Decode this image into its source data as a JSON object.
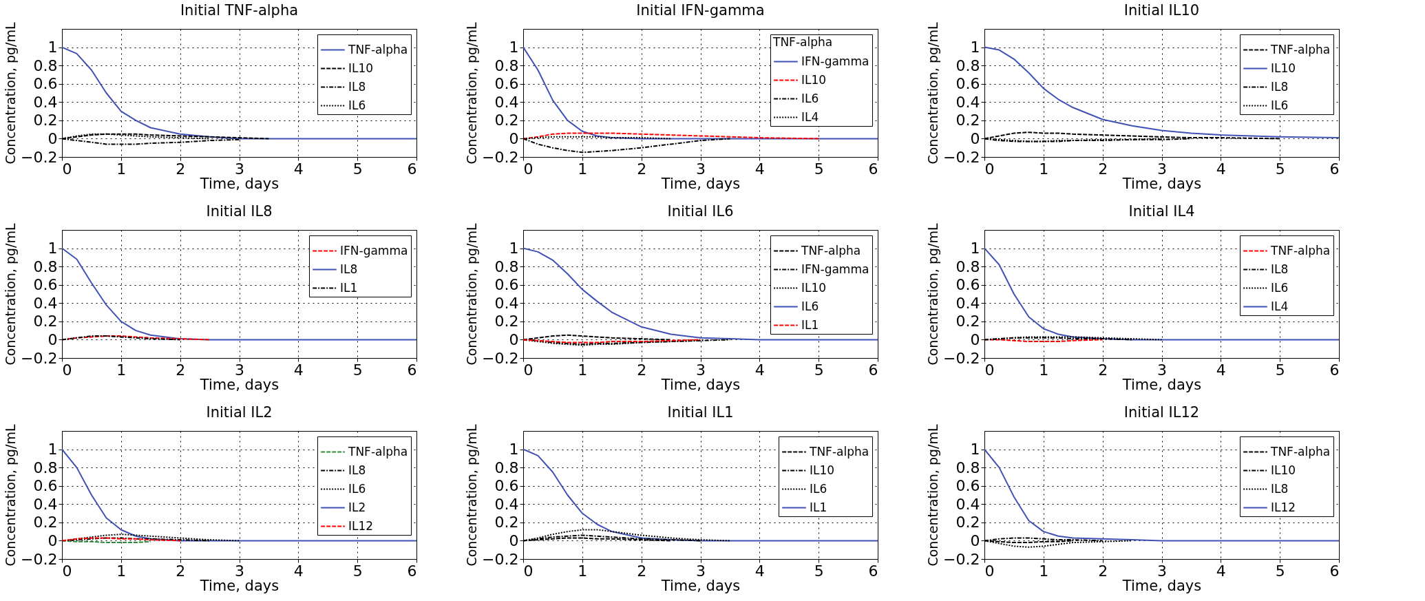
{
  "chart_data": [
    {
      "type": "line",
      "title": "Initial TNF-alpha",
      "xlabel": "Time, days",
      "ylabel": "Concentration, pg/mL",
      "x": [
        0,
        0.25,
        0.5,
        0.75,
        1,
        1.25,
        1.5,
        2,
        2.5,
        3,
        3.5,
        4,
        5,
        6
      ],
      "xlim": [
        0,
        6
      ],
      "ylim": [
        -0.2,
        1.2
      ],
      "xticks": [
        0,
        1,
        2,
        3,
        4,
        5,
        6
      ],
      "yticks": [
        -0.2,
        0,
        0.2,
        0.4,
        0.6,
        0.8,
        1
      ],
      "grid": true,
      "legend": "top right",
      "series": [
        {
          "name": "TNF-alpha",
          "color": "#3f51b5",
          "line_style": "solid",
          "values": [
            1,
            0.93,
            0.75,
            0.5,
            0.3,
            0.2,
            0.12,
            0.05,
            0.02,
            0,
            0,
            0,
            0,
            0
          ]
        },
        {
          "name": "IL10",
          "color": "#000000",
          "line_style": "dashed",
          "values": [
            0,
            0.02,
            0.04,
            0.05,
            0.05,
            0.05,
            0.04,
            0.03,
            0.02,
            0.01,
            0,
            null,
            null,
            null
          ]
        },
        {
          "name": "IL8",
          "color": "#000000",
          "line_style": "dashdot",
          "values": [
            0,
            -0.02,
            -0.04,
            -0.06,
            -0.06,
            -0.06,
            -0.05,
            -0.04,
            -0.02,
            -0.01,
            null,
            null,
            null,
            null
          ]
        },
        {
          "name": "IL6",
          "color": "#000000",
          "line_style": "dotted",
          "values": [
            0,
            0.03,
            0.05,
            0.05,
            0.04,
            0.03,
            0.02,
            0.01,
            0,
            null,
            null,
            null,
            null,
            null
          ]
        }
      ]
    },
    {
      "type": "line",
      "title": "Initial IFN-gamma",
      "xlabel": "Time, days",
      "ylabel": "Concentration, pg/mL",
      "legend_title": "TNF-alpha",
      "x": [
        0,
        0.25,
        0.5,
        0.75,
        1,
        1.25,
        1.5,
        2,
        2.5,
        3,
        3.5,
        4,
        5,
        6
      ],
      "xlim": [
        0,
        6
      ],
      "ylim": [
        -0.2,
        1.2
      ],
      "xticks": [
        0,
        1,
        2,
        3,
        4,
        5,
        6
      ],
      "yticks": [
        -0.2,
        0,
        0.2,
        0.4,
        0.6,
        0.8,
        1
      ],
      "grid": true,
      "legend": "top right",
      "series": [
        {
          "name": "IFN-gamma",
          "color": "#3f51b5",
          "line_style": "solid",
          "values": [
            1,
            0.75,
            0.42,
            0.2,
            0.08,
            0.03,
            0.01,
            0,
            0,
            0,
            0,
            0,
            0,
            0
          ]
        },
        {
          "name": "IL10",
          "color": "#ff0000",
          "line_style": "dashed",
          "values": [
            0,
            0.02,
            0.05,
            0.06,
            0.06,
            0.06,
            0.06,
            0.05,
            0.04,
            0.03,
            0.02,
            0.01,
            0,
            null
          ]
        },
        {
          "name": "IL6",
          "color": "#000000",
          "line_style": "dashdot",
          "values": [
            0,
            -0.06,
            -0.1,
            -0.13,
            -0.15,
            -0.14,
            -0.13,
            -0.1,
            -0.06,
            -0.02,
            0,
            null,
            null,
            null
          ]
        },
        {
          "name": "IL4",
          "color": "#000000",
          "line_style": "dotted",
          "values": [
            0,
            0.01,
            0.02,
            0.02,
            0.02,
            0.02,
            0.01,
            0.01,
            0,
            null,
            null,
            null,
            null,
            null
          ]
        }
      ]
    },
    {
      "type": "line",
      "title": "Initial IL10",
      "xlabel": "Time, days",
      "ylabel": "Concentration, pg/mL",
      "x": [
        0,
        0.25,
        0.5,
        0.75,
        1,
        1.25,
        1.5,
        2,
        2.5,
        3,
        3.5,
        4,
        5,
        6
      ],
      "xlim": [
        0,
        6
      ],
      "ylim": [
        -0.2,
        1.2
      ],
      "xticks": [
        0,
        1,
        2,
        3,
        4,
        5,
        6
      ],
      "yticks": [
        -0.2,
        0,
        0.2,
        0.4,
        0.6,
        0.8,
        1
      ],
      "grid": true,
      "legend": "top right",
      "series": [
        {
          "name": "TNF-alpha",
          "color": "#000000",
          "line_style": "dashed",
          "values": [
            0,
            0.03,
            0.06,
            0.07,
            0.06,
            0.06,
            0.05,
            0.04,
            0.03,
            0.02,
            0.01,
            0.01,
            0,
            null
          ]
        },
        {
          "name": "IL10",
          "color": "#3f51b5",
          "line_style": "solid",
          "values": [
            1,
            0.97,
            0.87,
            0.72,
            0.55,
            0.43,
            0.34,
            0.21,
            0.14,
            0.09,
            0.06,
            0.04,
            0.02,
            0.01
          ]
        },
        {
          "name": "IL8",
          "color": "#000000",
          "line_style": "dashdot",
          "values": [
            0,
            -0.02,
            -0.03,
            -0.03,
            -0.03,
            -0.03,
            -0.02,
            -0.02,
            -0.01,
            -0.01,
            0,
            null,
            null,
            null
          ]
        },
        {
          "name": "IL6",
          "color": "#000000",
          "line_style": "dotted",
          "values": [
            0,
            -0.01,
            -0.02,
            -0.03,
            -0.03,
            -0.02,
            -0.02,
            -0.01,
            -0.01,
            0,
            null,
            null,
            null,
            null
          ]
        }
      ]
    },
    {
      "type": "line",
      "title": "Initial IL8",
      "xlabel": "Time, days",
      "ylabel": "Concentration, pg/mL",
      "x": [
        0,
        0.25,
        0.5,
        0.75,
        1,
        1.25,
        1.5,
        2,
        2.5,
        3,
        3.5,
        4,
        5,
        6
      ],
      "xlim": [
        0,
        6
      ],
      "ylim": [
        -0.2,
        1.2
      ],
      "xticks": [
        0,
        1,
        2,
        3,
        4,
        5,
        6
      ],
      "yticks": [
        -0.2,
        0,
        0.2,
        0.4,
        0.6,
        0.8,
        1
      ],
      "grid": true,
      "legend": "top right",
      "series": [
        {
          "name": "IFN-gamma",
          "color": "#ff0000",
          "line_style": "dashed",
          "values": [
            0,
            0.02,
            0.03,
            0.04,
            0.04,
            0.03,
            0.02,
            0.01,
            0,
            null,
            null,
            null,
            null,
            null
          ]
        },
        {
          "name": "IL8",
          "color": "#3f51b5",
          "line_style": "solid",
          "values": [
            1,
            0.88,
            0.62,
            0.38,
            0.2,
            0.1,
            0.05,
            0.01,
            0,
            0,
            0,
            0,
            0,
            0
          ]
        },
        {
          "name": "IL1",
          "color": "#000000",
          "line_style": "dashdot",
          "values": [
            0,
            0.02,
            0.04,
            0.04,
            0.03,
            0.02,
            0.01,
            0,
            null,
            null,
            null,
            null,
            null,
            null
          ]
        }
      ]
    },
    {
      "type": "line",
      "title": "Initial IL6",
      "xlabel": "Time, days",
      "ylabel": "Concentration, pg/mL",
      "x": [
        0,
        0.25,
        0.5,
        0.75,
        1,
        1.25,
        1.5,
        2,
        2.5,
        3,
        3.5,
        4,
        5,
        6
      ],
      "xlim": [
        0,
        6
      ],
      "ylim": [
        -0.2,
        1.2
      ],
      "xticks": [
        0,
        1,
        2,
        3,
        4,
        5,
        6
      ],
      "yticks": [
        -0.2,
        0,
        0.2,
        0.4,
        0.6,
        0.8,
        1
      ],
      "grid": true,
      "legend": "top right",
      "series": [
        {
          "name": "TNF-alpha",
          "color": "#000000",
          "line_style": "dashed",
          "values": [
            0,
            0.02,
            0.04,
            0.05,
            0.04,
            0.03,
            0.02,
            0.01,
            0,
            null,
            null,
            null,
            null,
            null
          ]
        },
        {
          "name": "IFN-gamma",
          "color": "#000000",
          "line_style": "dashdot",
          "values": [
            0,
            -0.01,
            -0.03,
            -0.04,
            -0.05,
            -0.04,
            -0.04,
            -0.03,
            -0.02,
            -0.01,
            0,
            null,
            null,
            null
          ]
        },
        {
          "name": "IL10",
          "color": "#000000",
          "line_style": "dotted",
          "values": [
            0,
            -0.02,
            -0.04,
            -0.05,
            -0.06,
            -0.05,
            -0.05,
            -0.03,
            -0.02,
            -0.01,
            null,
            null,
            null,
            null
          ]
        },
        {
          "name": "IL6",
          "color": "#3f51b5",
          "line_style": "solid",
          "values": [
            1,
            0.96,
            0.87,
            0.72,
            0.55,
            0.42,
            0.3,
            0.14,
            0.06,
            0.02,
            0.01,
            0,
            0,
            0
          ]
        },
        {
          "name": "IL1",
          "color": "#ff0000",
          "line_style": "dashed",
          "values": [
            0,
            -0.01,
            -0.02,
            -0.03,
            -0.03,
            -0.03,
            -0.02,
            -0.02,
            -0.01,
            0,
            null,
            null,
            null,
            null
          ]
        }
      ]
    },
    {
      "type": "line",
      "title": "Initial IL4",
      "xlabel": "Time, days",
      "ylabel": "Concentration, pg/mL",
      "x": [
        0,
        0.25,
        0.5,
        0.75,
        1,
        1.25,
        1.5,
        2,
        2.5,
        3,
        3.5,
        4,
        5,
        6
      ],
      "xlim": [
        0,
        6
      ],
      "ylim": [
        -0.2,
        1.2
      ],
      "xticks": [
        0,
        1,
        2,
        3,
        4,
        5,
        6
      ],
      "yticks": [
        -0.2,
        0,
        0.2,
        0.4,
        0.6,
        0.8,
        1
      ],
      "grid": true,
      "legend": "top right",
      "series": [
        {
          "name": "TNF-alpha",
          "color": "#ff0000",
          "line_style": "dashed",
          "values": [
            0,
            0,
            -0.01,
            -0.02,
            -0.02,
            -0.02,
            -0.01,
            0,
            null,
            null,
            null,
            null,
            null,
            null
          ]
        },
        {
          "name": "IL8",
          "color": "#000000",
          "line_style": "dashdot",
          "values": [
            0,
            0.01,
            0.02,
            0.02,
            0.02,
            0.02,
            0.01,
            0.01,
            0,
            null,
            null,
            null,
            null,
            null
          ]
        },
        {
          "name": "IL6",
          "color": "#000000",
          "line_style": "dotted",
          "values": [
            0,
            0.01,
            0.02,
            0.03,
            0.03,
            0.03,
            0.03,
            0.02,
            0.01,
            0,
            null,
            null,
            null,
            null
          ]
        },
        {
          "name": "IL4",
          "color": "#3f51b5",
          "line_style": "solid",
          "values": [
            1,
            0.82,
            0.5,
            0.25,
            0.12,
            0.06,
            0.03,
            0.01,
            0,
            0,
            0,
            0,
            0,
            0
          ]
        }
      ]
    },
    {
      "type": "line",
      "title": "Initial IL2",
      "xlabel": "Time, days",
      "ylabel": "Concentration, pg/mL",
      "x": [
        0,
        0.25,
        0.5,
        0.75,
        1,
        1.25,
        1.5,
        2,
        2.5,
        3,
        3.5,
        4,
        5,
        6
      ],
      "xlim": [
        0,
        6
      ],
      "ylim": [
        -0.2,
        1.2
      ],
      "xticks": [
        0,
        1,
        2,
        3,
        4,
        5,
        6
      ],
      "yticks": [
        -0.2,
        0,
        0.2,
        0.4,
        0.6,
        0.8,
        1
      ],
      "grid": true,
      "legend": "top right",
      "series": [
        {
          "name": "TNF-alpha",
          "color": "#2e8b3a",
          "line_style": "dashed",
          "values": [
            0,
            -0.01,
            -0.01,
            -0.02,
            -0.02,
            -0.02,
            -0.01,
            null,
            null,
            null,
            null,
            null,
            null,
            null
          ]
        },
        {
          "name": "IL8",
          "color": "#000000",
          "line_style": "dashdot",
          "values": [
            0,
            0.01,
            0.02,
            0.03,
            0.03,
            0.02,
            0.02,
            0.01,
            0,
            null,
            null,
            null,
            null,
            null
          ]
        },
        {
          "name": "IL6",
          "color": "#000000",
          "line_style": "dotted",
          "values": [
            0,
            0.02,
            0.04,
            0.06,
            0.07,
            0.06,
            0.05,
            0.03,
            0.01,
            0,
            null,
            null,
            null,
            null
          ]
        },
        {
          "name": "IL2",
          "color": "#3f51b5",
          "line_style": "solid",
          "values": [
            1,
            0.8,
            0.5,
            0.25,
            0.12,
            0.05,
            0.02,
            0,
            0,
            0,
            0,
            0,
            0,
            0
          ]
        },
        {
          "name": "IL12",
          "color": "#ff0000",
          "line_style": "dashed",
          "values": [
            0,
            0.02,
            0.03,
            0.03,
            0.02,
            0.02,
            0.01,
            0,
            null,
            null,
            null,
            null,
            null,
            null
          ]
        }
      ]
    },
    {
      "type": "line",
      "title": "Initial IL1",
      "xlabel": "Time, days",
      "ylabel": "Concentration, pg/mL",
      "x": [
        0,
        0.25,
        0.5,
        0.75,
        1,
        1.25,
        1.5,
        2,
        2.5,
        3,
        3.5,
        4,
        5,
        6
      ],
      "xlim": [
        0,
        6
      ],
      "ylim": [
        -0.2,
        1.2
      ],
      "xticks": [
        0,
        1,
        2,
        3,
        4,
        5,
        6
      ],
      "yticks": [
        -0.2,
        0,
        0.2,
        0.4,
        0.6,
        0.8,
        1
      ],
      "grid": true,
      "legend": "top right",
      "series": [
        {
          "name": "TNF-alpha",
          "color": "#000000",
          "line_style": "dashed",
          "values": [
            0,
            0.01,
            0.02,
            0.03,
            0.03,
            0.02,
            0.02,
            0.01,
            0,
            null,
            null,
            null,
            null,
            null
          ]
        },
        {
          "name": "IL10",
          "color": "#000000",
          "line_style": "dashdot",
          "values": [
            0,
            0.02,
            0.04,
            0.05,
            0.06,
            0.05,
            0.04,
            0.02,
            0.01,
            0,
            null,
            null,
            null,
            null
          ]
        },
        {
          "name": "IL6",
          "color": "#000000",
          "line_style": "dotted",
          "values": [
            0,
            0.03,
            0.07,
            0.1,
            0.12,
            0.12,
            0.1,
            0.06,
            0.03,
            0.01,
            0,
            null,
            null,
            null
          ]
        },
        {
          "name": "IL1",
          "color": "#3f51b5",
          "line_style": "solid",
          "values": [
            1,
            0.93,
            0.75,
            0.5,
            0.3,
            0.18,
            0.1,
            0.03,
            0.01,
            0,
            0,
            0,
            0,
            0
          ]
        }
      ]
    },
    {
      "type": "line",
      "title": "Initial IL12",
      "xlabel": "Time, days",
      "ylabel": "Concentration, pg/mL",
      "x": [
        0,
        0.25,
        0.5,
        0.75,
        1,
        1.25,
        1.5,
        2,
        2.5,
        3,
        3.5,
        4,
        5,
        6
      ],
      "xlim": [
        0,
        6
      ],
      "ylim": [
        -0.2,
        1.2
      ],
      "xticks": [
        0,
        1,
        2,
        3,
        4,
        5,
        6
      ],
      "yticks": [
        -0.2,
        0,
        0.2,
        0.4,
        0.6,
        0.8,
        1
      ],
      "grid": true,
      "legend": "top right",
      "series": [
        {
          "name": "TNF-alpha",
          "color": "#000000",
          "line_style": "dashed",
          "values": [
            0,
            -0.01,
            -0.02,
            -0.02,
            -0.01,
            -0.01,
            0,
            null,
            null,
            null,
            null,
            null,
            null,
            null
          ]
        },
        {
          "name": "IL10",
          "color": "#000000",
          "line_style": "dashdot",
          "values": [
            0,
            0.02,
            0.03,
            0.03,
            0.02,
            0.01,
            0.01,
            0,
            null,
            null,
            null,
            null,
            null,
            null
          ]
        },
        {
          "name": "IL8",
          "color": "#000000",
          "line_style": "dotted",
          "values": [
            0,
            -0.03,
            -0.06,
            -0.07,
            -0.06,
            -0.04,
            -0.02,
            -0.01,
            0,
            null,
            null,
            null,
            null,
            null
          ]
        },
        {
          "name": "IL12",
          "color": "#3f51b5",
          "line_style": "solid",
          "values": [
            1,
            0.8,
            0.48,
            0.22,
            0.1,
            0.05,
            0.03,
            0.02,
            0.01,
            0,
            0,
            0,
            0,
            0
          ]
        }
      ]
    }
  ]
}
